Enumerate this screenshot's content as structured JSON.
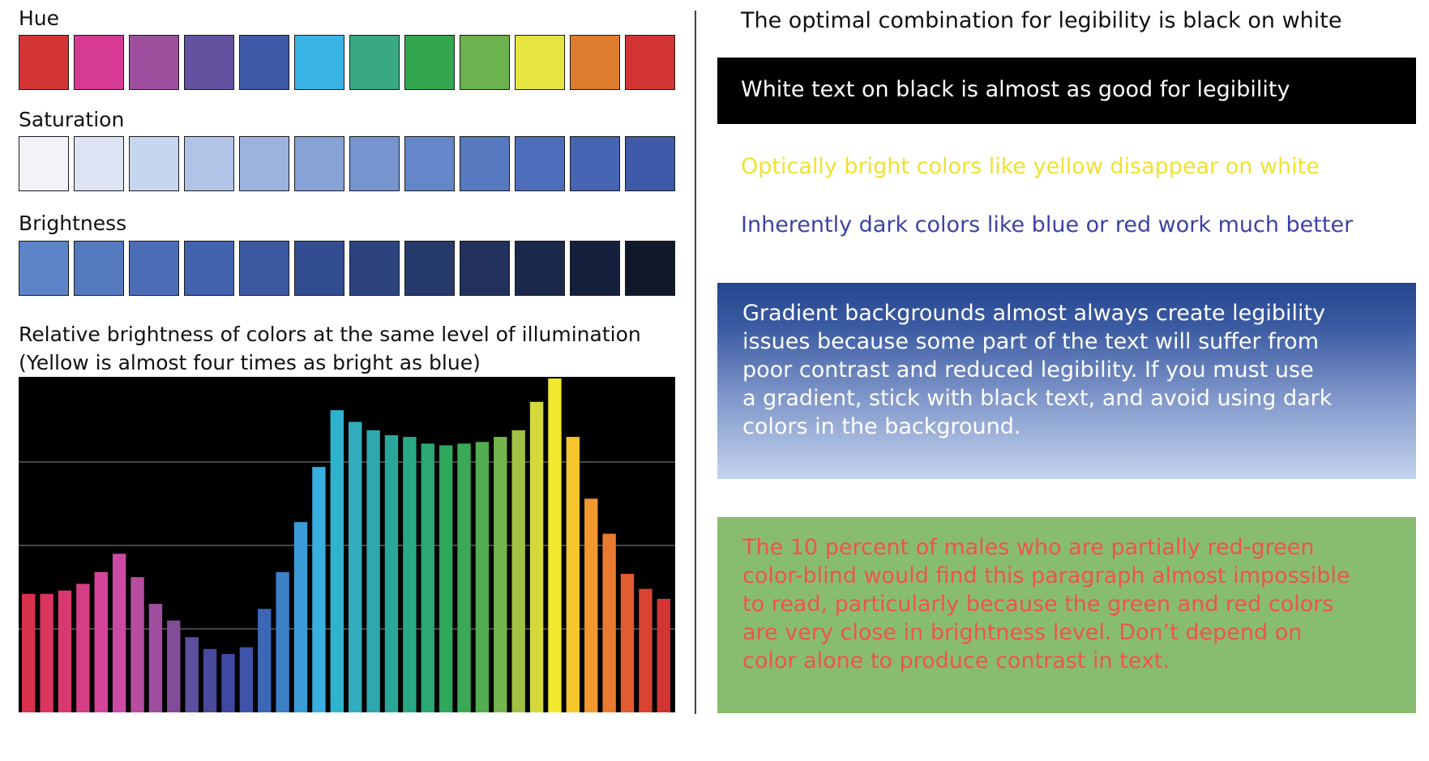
{
  "hue": {
    "label": "Hue",
    "colors": [
      "#d33535",
      "#d63a93",
      "#9d4f9d",
      "#62529f",
      "#3f5aa7",
      "#3ab4e7",
      "#38a984",
      "#33a74e",
      "#6cb24f",
      "#e6e540",
      "#de7c2e",
      "#d23433"
    ]
  },
  "saturation": {
    "label": "Saturation",
    "colors": [
      "#f1f3f9",
      "#dce3f3",
      "#c8d5ee",
      "#b1c4e7",
      "#9cb3e0",
      "#88a3d8",
      "#7695cf",
      "#6387c8",
      "#5679bf",
      "#4d6fbb",
      "#4564b1",
      "#3e5aa8"
    ]
  },
  "brightness": {
    "label": "Brightness",
    "colors": [
      "#5d83c8",
      "#5579bf",
      "#4b6db6",
      "#4463ae",
      "#3c58a1",
      "#334d91",
      "#2d437e",
      "#273a6c",
      "#21315b",
      "#1b284b",
      "#15203c",
      "#11182a"
    ]
  },
  "chart_data": {
    "type": "bar",
    "title": "Relative brightness of colors at the same level of illumination",
    "subtitle": "(Yellow is almost four times as bright as blue)",
    "title_lines": [
      "Relative brightness of colors at the same level of illumination",
      "(Yellow is almost four times as bright as blue)"
    ],
    "xlabel": "",
    "ylabel": "",
    "ylim": [
      0,
      100
    ],
    "gridlines": [
      25,
      50,
      75
    ],
    "values": [
      35.5,
      35.5,
      36.5,
      38.5,
      42,
      47.5,
      40.5,
      32.5,
      27.5,
      22.5,
      19,
      17.5,
      19.5,
      31,
      42,
      57,
      73.5,
      90.5,
      87,
      84.5,
      83,
      82.5,
      80.5,
      80,
      80.5,
      81,
      82.5,
      84.5,
      93,
      100,
      82.5,
      64,
      53.5,
      41.5,
      37,
      34
    ],
    "colors": [
      "#d8324e",
      "#d9355f",
      "#d83a70",
      "#d63f86",
      "#d6449a",
      "#cc4aa3",
      "#b64d9f",
      "#9d4e9d",
      "#814c98",
      "#5b4f9e",
      "#4a4a9d",
      "#3f49a1",
      "#3e53a9",
      "#3c67b5",
      "#3c80c6",
      "#3b9bd6",
      "#39aee0",
      "#2fb3cc",
      "#32adbd",
      "#2ea8ae",
      "#2ba79a",
      "#2aa885",
      "#2ba874",
      "#2fa75c",
      "#3aa955",
      "#52ad50",
      "#74b54e",
      "#a0c143",
      "#d3d93b",
      "#f1e82d",
      "#f4c52c",
      "#f1982f",
      "#e97b30",
      "#e25b31",
      "#da4332",
      "#d23434"
    ]
  },
  "right": {
    "black_on_white": "The optimal combination for legibility is black on white",
    "white_on_black": "White text on black is almost as good for legibility",
    "yellow_on_white": "Optically bright colors like yellow disappear on white",
    "blue_on_white": "Inherently dark colors like blue or red work much better",
    "gradient_lines": [
      "Gradient backgrounds almost always create legibility",
      "issues because some part of the text will suffer from",
      "poor contrast and reduced legibility. If you must use",
      "a gradient, stick with black text, and avoid using dark",
      "colors in the background."
    ],
    "redgreen_lines": [
      "The 10 percent of males who are partially red-green",
      "color-blind would find this paragraph almost impossible",
      "to read, particularly because the green and red colors",
      "are very close in brightness level. Don’t depend on",
      "color alone to produce contrast in text."
    ]
  }
}
